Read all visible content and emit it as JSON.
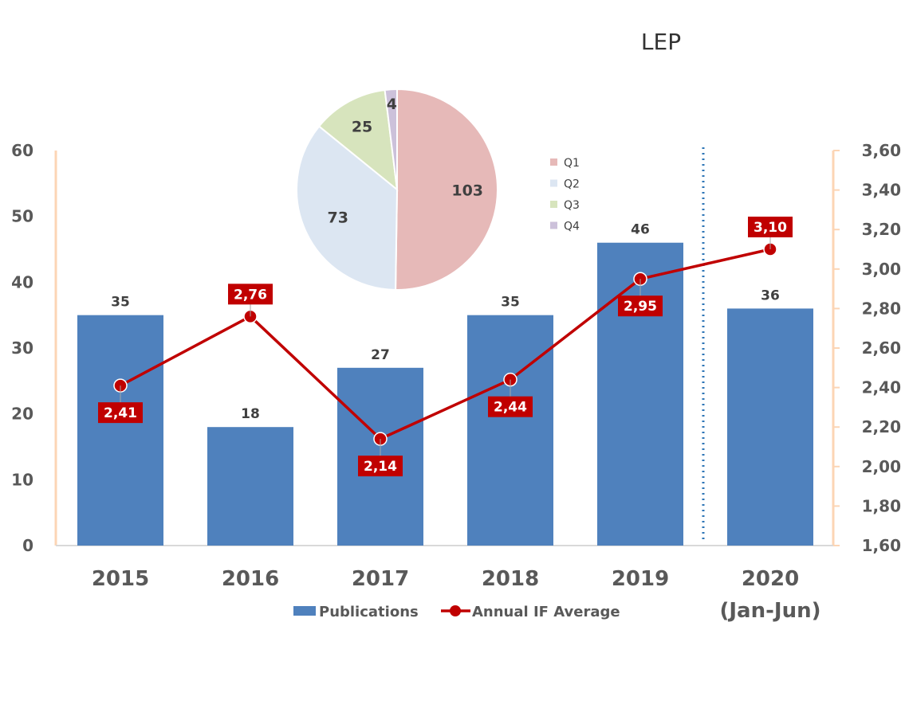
{
  "chart_data": [
    {
      "type": "bar",
      "title": "LEP",
      "categories": [
        [
          "2015"
        ],
        [
          "2016"
        ],
        [
          "2017"
        ],
        [
          "2018"
        ],
        [
          "2019"
        ],
        [
          "2020",
          "(Jan-Jun)"
        ]
      ],
      "series": [
        {
          "name": "Publications",
          "axis": "left",
          "type": "bar",
          "color": "#4f81bd",
          "values": [
            35,
            18,
            27,
            35,
            46,
            36
          ],
          "labels": [
            "35",
            "18",
            "27",
            "35",
            "46",
            "36"
          ]
        },
        {
          "name": "Annual IF Average",
          "axis": "right",
          "type": "line",
          "color": "#c00000",
          "values": [
            2.41,
            2.76,
            2.14,
            2.44,
            2.95,
            3.1
          ],
          "labels": [
            "2,41",
            "2,76",
            "2,14",
            "2,44",
            "2,95",
            "3,10"
          ]
        }
      ],
      "y_left": {
        "min": 0,
        "max": 60,
        "ticks": [
          "0",
          "10",
          "20",
          "30",
          "40",
          "50",
          "60"
        ]
      },
      "y_right": {
        "min": 1.6,
        "max": 3.6,
        "ticks": [
          "1,60",
          "1,80",
          "2,00",
          "2,20",
          "2,40",
          "2,60",
          "2,80",
          "3,00",
          "3,20",
          "3,40",
          "3,60"
        ]
      },
      "legend": "bottom",
      "grid": false,
      "annotations": [
        "dotted vertical divider between 2019 and 2020"
      ]
    },
    {
      "type": "pie",
      "labels": [
        "Q1",
        "Q2",
        "Q3",
        "Q4"
      ],
      "values": [
        103,
        73,
        25,
        4
      ],
      "value_labels": [
        "103",
        "73",
        "25",
        "4"
      ],
      "colors": [
        "#e6b9b8",
        "#dce6f2",
        "#d7e4bd",
        "#ccc1da"
      ],
      "legend": "right"
    }
  ]
}
